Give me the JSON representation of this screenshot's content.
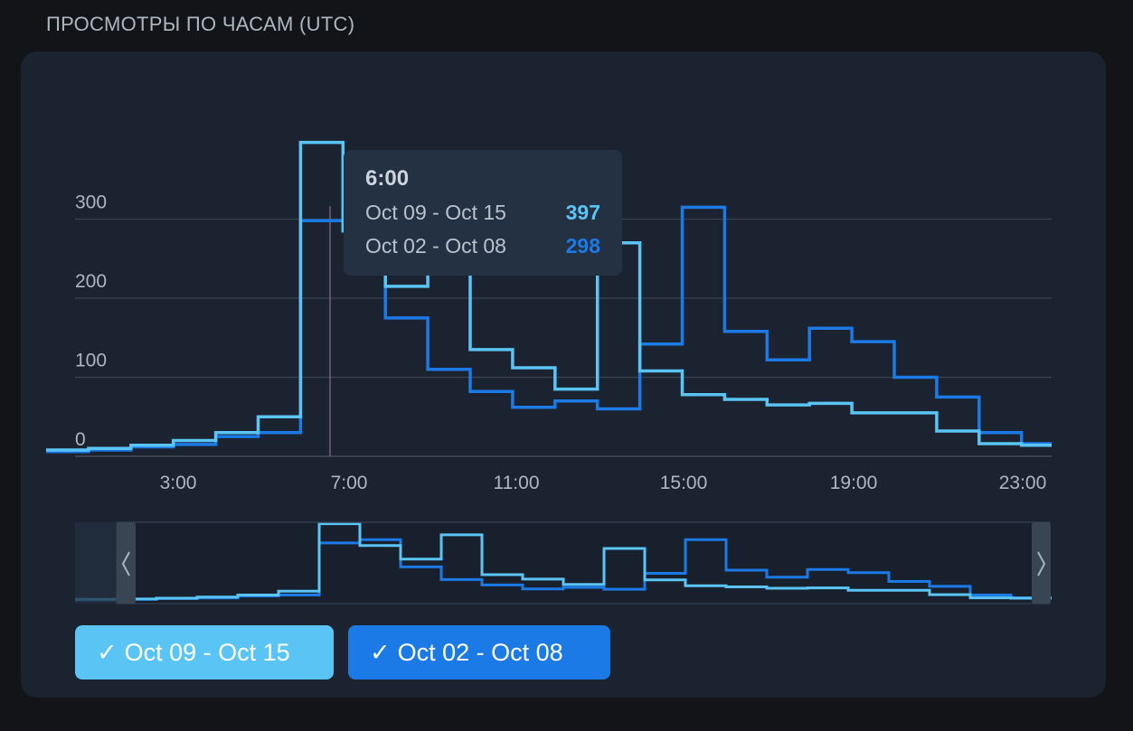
{
  "header": {
    "title": "Просмотры по часам (UTC)"
  },
  "colors": {
    "series_a": "#5ac4f5",
    "series_b": "#1c7ae6",
    "background": "#131417",
    "card": "#1b2330"
  },
  "tooltip": {
    "title": "6:00",
    "rows": [
      {
        "label": "Oct 09 - Oct 15",
        "value": "397"
      },
      {
        "label": "Oct 02 - Oct 08",
        "value": "298"
      }
    ]
  },
  "legend": {
    "check_icon": "✓",
    "items": [
      {
        "label": "Oct 09 - Oct 15"
      },
      {
        "label": "Oct 02 - Oct 08"
      }
    ]
  },
  "navigator": {
    "left_handle_icon": "chevron-left-icon",
    "right_handle_icon": "chevron-right-icon"
  },
  "chart_data": {
    "type": "line",
    "step": true,
    "title": "",
    "xlabel": "",
    "ylabel": "",
    "x": [
      "0:00",
      "1:00",
      "2:00",
      "3:00",
      "4:00",
      "5:00",
      "6:00",
      "7:00",
      "8:00",
      "9:00",
      "10:00",
      "11:00",
      "12:00",
      "13:00",
      "14:00",
      "15:00",
      "16:00",
      "17:00",
      "18:00",
      "19:00",
      "20:00",
      "21:00",
      "22:00",
      "23:00"
    ],
    "x_tick_labels": [
      "3:00",
      "7:00",
      "11:00",
      "15:00",
      "19:00",
      "23:00"
    ],
    "y_tick_labels": [
      "0",
      "100",
      "200",
      "300"
    ],
    "ylim": [
      0,
      400
    ],
    "grid": true,
    "series": [
      {
        "name": "Oct 09 - Oct 15",
        "values": [
          8,
          10,
          14,
          20,
          30,
          50,
          397,
          285,
          215,
          340,
          135,
          112,
          85,
          270,
          108,
          78,
          72,
          65,
          67,
          55,
          55,
          32,
          16,
          14
        ]
      },
      {
        "name": "Oct 02 - Oct 08",
        "values": [
          6,
          8,
          12,
          15,
          25,
          30,
          298,
          315,
          175,
          110,
          82,
          62,
          70,
          60,
          142,
          315,
          158,
          122,
          162,
          145,
          100,
          75,
          30,
          16
        ]
      }
    ]
  }
}
